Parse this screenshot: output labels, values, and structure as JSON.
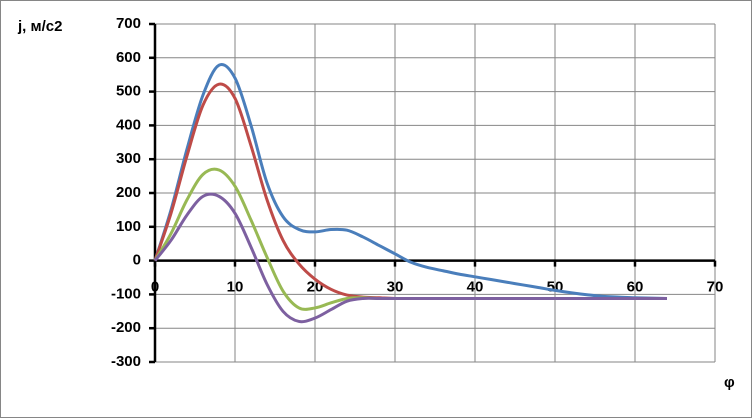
{
  "chart_data": {
    "type": "line",
    "y_label": "j, м/с2",
    "x_label": "φ",
    "x": [
      0,
      2,
      4,
      6,
      8,
      10,
      12,
      14,
      16,
      18,
      20,
      22,
      24,
      26,
      28,
      30,
      32,
      34,
      36,
      38,
      40,
      42,
      44,
      46,
      48,
      50,
      52,
      54,
      56,
      58,
      60,
      62,
      64
    ],
    "series": [
      {
        "color": "#4a7ebb",
        "values": [
          0,
          150,
          330,
          490,
          578,
          540,
          400,
          230,
          130,
          92,
          85,
          92,
          90,
          70,
          45,
          20,
          -5,
          -20,
          -30,
          -40,
          -48,
          -56,
          -64,
          -72,
          -80,
          -88,
          -95,
          -101,
          -106,
          -108,
          -110,
          -111,
          -112
        ]
      },
      {
        "color": "#be4b48",
        "values": [
          0,
          140,
          310,
          460,
          522,
          480,
          340,
          180,
          60,
          -10,
          -55,
          -85,
          -102,
          -108,
          -110,
          -112,
          -112,
          -112,
          -112,
          -112,
          -112,
          -112,
          -112,
          -112,
          -112,
          -112,
          -112,
          -112,
          -112,
          -112,
          -112,
          -112,
          -112
        ]
      },
      {
        "color": "#98b954",
        "values": [
          0,
          80,
          180,
          255,
          268,
          220,
          120,
          10,
          -90,
          -140,
          -140,
          -125,
          -112,
          -110,
          -112,
          -112,
          -112,
          -112,
          -112,
          -112,
          -112,
          -112,
          -112,
          -112,
          -112,
          -112,
          -112,
          -112,
          -112,
          -112,
          -112,
          -112,
          -112
        ]
      },
      {
        "color": "#7d60a0",
        "values": [
          0,
          60,
          135,
          190,
          190,
          140,
          40,
          -70,
          -150,
          -180,
          -170,
          -145,
          -120,
          -112,
          -112,
          -112,
          -112,
          -112,
          -112,
          -112,
          -112,
          -112,
          -112,
          -112,
          -112,
          -112,
          -112,
          -112,
          -112,
          -112,
          -112,
          -112,
          -112
        ]
      }
    ],
    "xlim": [
      0,
      70
    ],
    "xticks": [
      0,
      10,
      20,
      30,
      40,
      50,
      60,
      70
    ],
    "ylim": [
      -300,
      700
    ],
    "yticks": [
      -300,
      -200,
      -100,
      0,
      100,
      200,
      300,
      400,
      500,
      600,
      700
    ],
    "grid": true
  }
}
